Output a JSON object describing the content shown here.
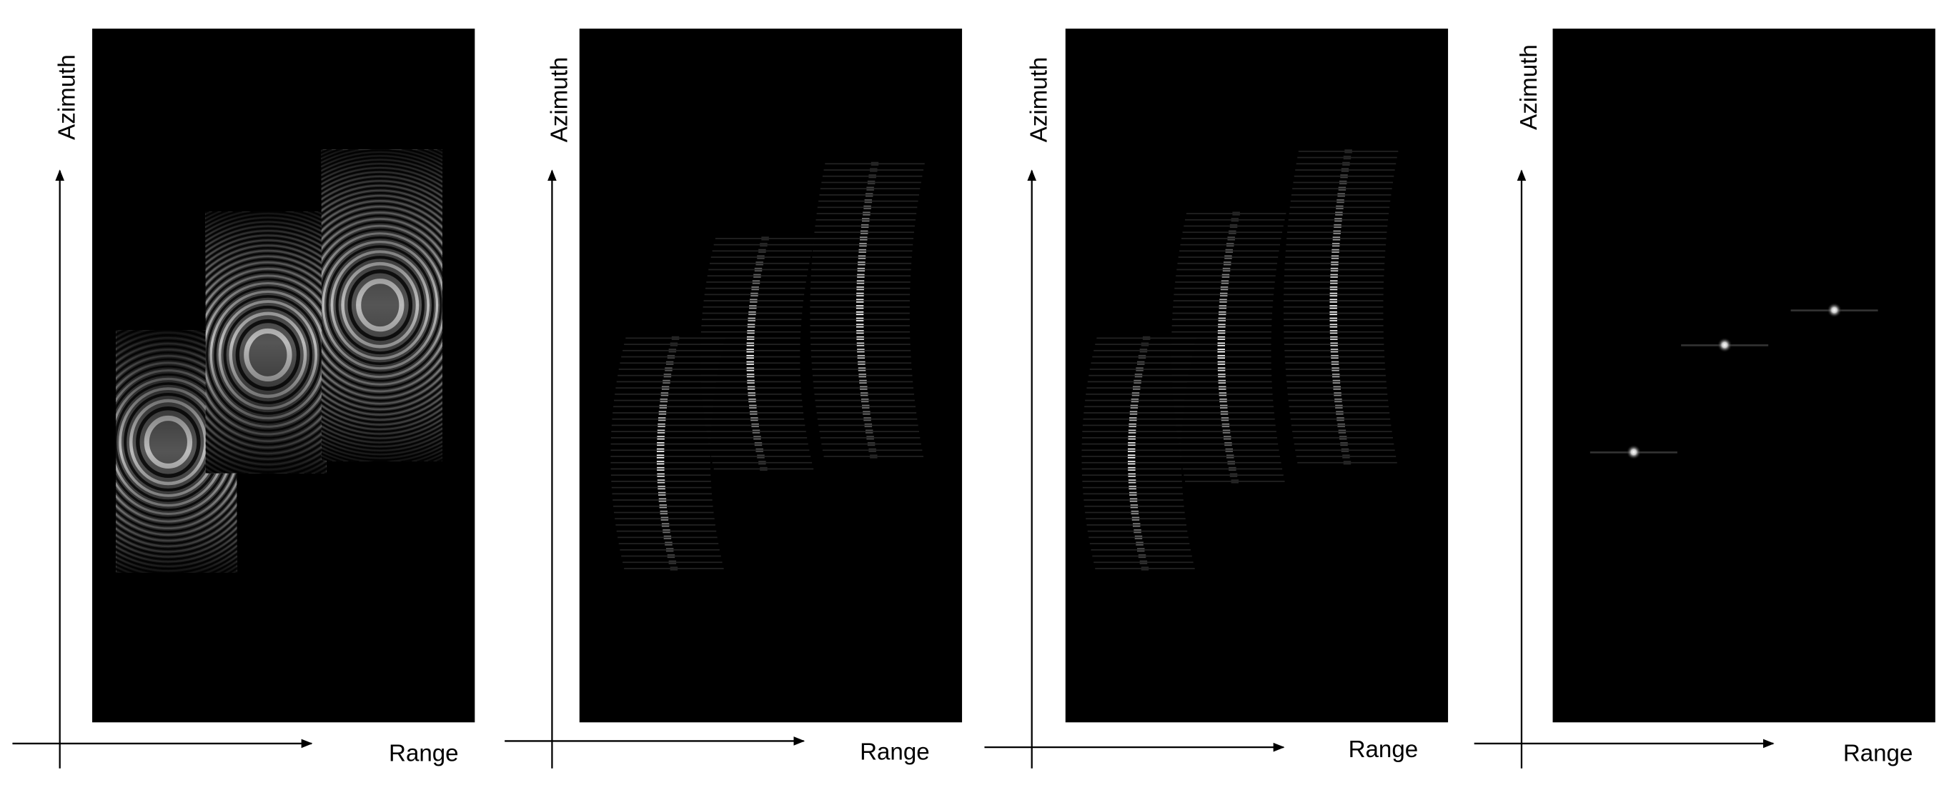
{
  "panels": [
    {
      "y_label": "Azimuth",
      "x_label": "Range"
    },
    {
      "y_label": "Azimuth",
      "x_label": "Range"
    },
    {
      "y_label": "Azimuth",
      "x_label": "Range"
    },
    {
      "y_label": "Azimuth",
      "x_label": "Range"
    }
  ]
}
